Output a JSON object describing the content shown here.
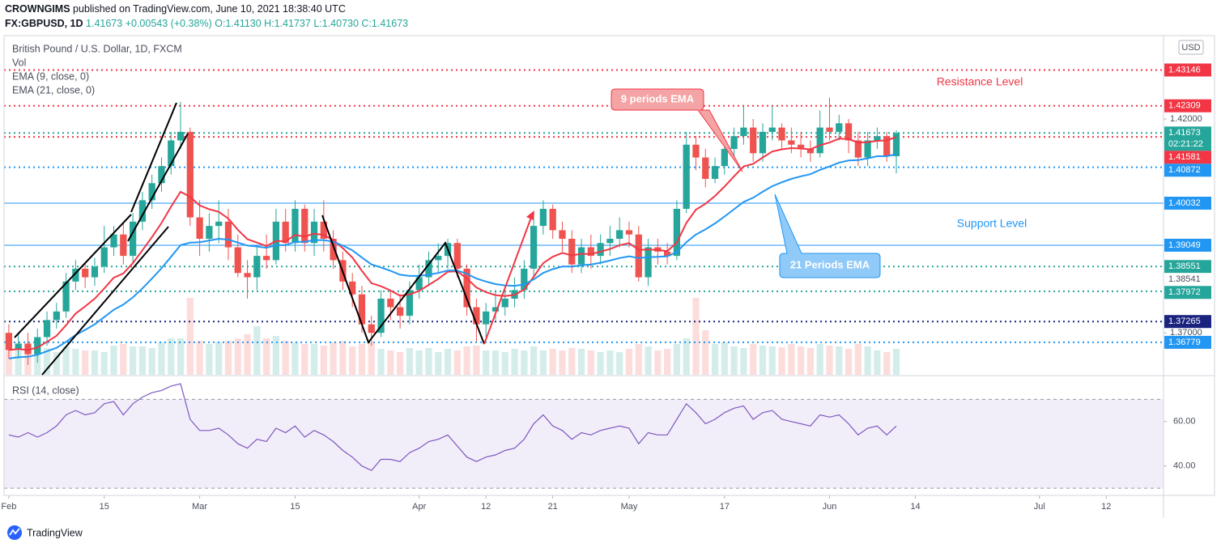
{
  "header": {
    "publisher": "CROWNGIMS",
    "published": "published on TradingView.com, June 10, 2021 18:38:40 UTC",
    "symbol": "FX:GBPUSD, 1D",
    "last": "1.41673",
    "change": "+0.00543 (+0.38%)",
    "open": "O:1.41130",
    "high": "H:1.41737",
    "low": "L:1.40730",
    "close": "C:1.41673"
  },
  "footer": "TradingView",
  "chart_data": {
    "type": "candlestick",
    "title": "British Pound / U.S. Dollar, 1D, FXCM",
    "currency": "USD",
    "up_color": "#26a69a",
    "down_color": "#ef5350",
    "xlim": [
      -0.5,
      121
    ],
    "xticks": [
      {
        "value": 0,
        "label": "Feb"
      },
      {
        "value": 10,
        "label": "15"
      },
      {
        "value": 20,
        "label": "Mar"
      },
      {
        "value": 30,
        "label": "15"
      },
      {
        "value": 43,
        "label": "Apr"
      },
      {
        "value": 50,
        "label": "12"
      },
      {
        "value": 57,
        "label": "21"
      },
      {
        "value": 65,
        "label": "May"
      },
      {
        "value": 75,
        "label": "17"
      },
      {
        "value": 86,
        "label": "Jun"
      },
      {
        "value": 95,
        "label": "14"
      },
      {
        "value": 108,
        "label": "Jul"
      },
      {
        "value": 115,
        "label": "12"
      }
    ],
    "ylim": [
      1.3602,
      1.4395
    ],
    "yticks": [
      {
        "value": 1.42,
        "label": "1.42000"
      },
      {
        "value": 1.37,
        "label": "1.37000"
      }
    ],
    "open": [
      1.37,
      1.366,
      1.3675,
      1.365,
      1.369,
      1.373,
      1.375,
      1.382,
      1.385,
      1.383,
      1.3855,
      1.39,
      1.393,
      1.388,
      1.396,
      1.401,
      1.405,
      1.409,
      1.415,
      1.417,
      1.397,
      1.392,
      1.395,
      1.396,
      1.39,
      1.384,
      1.383,
      1.388,
      1.387,
      1.396,
      1.391,
      1.399,
      1.391,
      1.396,
      1.392,
      1.387,
      1.382,
      1.379,
      1.372,
      1.37,
      1.378,
      1.376,
      1.374,
      1.38,
      1.383,
      1.387,
      1.388,
      1.391,
      1.385,
      1.376,
      1.372,
      1.375,
      1.376,
      1.378,
      1.38,
      1.385,
      1.395,
      1.399,
      1.394,
      1.392,
      1.386,
      1.39,
      1.388,
      1.391,
      1.392,
      1.394,
      1.393,
      1.383,
      1.39,
      1.389,
      1.388,
      1.399,
      1.414,
      1.411,
      1.406,
      1.409,
      1.413,
      1.416,
      1.418,
      1.412,
      1.417,
      1.418,
      1.415,
      1.414,
      1.413,
      1.412,
      1.418,
      1.417,
      1.419,
      1.415,
      1.411,
      1.415,
      1.416,
      1.4113
    ],
    "high": [
      1.372,
      1.37,
      1.37,
      1.371,
      1.375,
      1.377,
      1.384,
      1.387,
      1.3865,
      1.3875,
      1.395,
      1.395,
      1.3955,
      1.398,
      1.403,
      1.407,
      1.411,
      1.417,
      1.424,
      1.418,
      1.401,
      1.398,
      1.401,
      1.399,
      1.393,
      1.387,
      1.39,
      1.393,
      1.399,
      1.399,
      1.401,
      1.4,
      1.399,
      1.401,
      1.394,
      1.389,
      1.384,
      1.381,
      1.374,
      1.38,
      1.38,
      1.379,
      1.382,
      1.386,
      1.389,
      1.391,
      1.392,
      1.392,
      1.386,
      1.378,
      1.377,
      1.38,
      1.38,
      1.383,
      1.387,
      1.398,
      1.401,
      1.4,
      1.396,
      1.394,
      1.392,
      1.393,
      1.393,
      1.395,
      1.397,
      1.396,
      1.395,
      1.392,
      1.392,
      1.391,
      1.401,
      1.417,
      1.416,
      1.413,
      1.411,
      1.415,
      1.418,
      1.423,
      1.42,
      1.419,
      1.423,
      1.419,
      1.418,
      1.417,
      1.415,
      1.422,
      1.425,
      1.421,
      1.42,
      1.417,
      1.417,
      1.418,
      1.417,
      1.41737
    ],
    "low": [
      1.364,
      1.364,
      1.3625,
      1.363,
      1.367,
      1.371,
      1.3735,
      1.38,
      1.3805,
      1.381,
      1.384,
      1.388,
      1.386,
      1.386,
      1.394,
      1.399,
      1.403,
      1.407,
      1.413,
      1.395,
      1.388,
      1.389,
      1.391,
      1.387,
      1.383,
      1.378,
      1.38,
      1.385,
      1.386,
      1.389,
      1.389,
      1.389,
      1.388,
      1.389,
      1.385,
      1.38,
      1.376,
      1.37,
      1.367,
      1.369,
      1.373,
      1.371,
      1.372,
      1.378,
      1.381,
      1.384,
      1.385,
      1.383,
      1.374,
      1.368,
      1.369,
      1.373,
      1.374,
      1.376,
      1.378,
      1.383,
      1.393,
      1.392,
      1.389,
      1.384,
      1.384,
      1.385,
      1.386,
      1.388,
      1.39,
      1.39,
      1.382,
      1.381,
      1.386,
      1.386,
      1.387,
      1.398,
      1.408,
      1.404,
      1.405,
      1.407,
      1.411,
      1.414,
      1.41,
      1.41,
      1.415,
      1.413,
      1.412,
      1.411,
      1.41,
      1.411,
      1.415,
      1.415,
      1.412,
      1.409,
      1.409,
      1.413,
      1.41,
      1.4073
    ],
    "close": [
      1.366,
      1.3675,
      1.365,
      1.369,
      1.373,
      1.375,
      1.382,
      1.385,
      1.383,
      1.3855,
      1.39,
      1.393,
      1.388,
      1.396,
      1.401,
      1.405,
      1.409,
      1.415,
      1.417,
      1.397,
      1.392,
      1.395,
      1.396,
      1.39,
      1.384,
      1.383,
      1.388,
      1.387,
      1.396,
      1.391,
      1.399,
      1.391,
      1.396,
      1.392,
      1.387,
      1.382,
      1.379,
      1.372,
      1.37,
      1.378,
      1.376,
      1.374,
      1.38,
      1.383,
      1.387,
      1.388,
      1.391,
      1.385,
      1.376,
      1.372,
      1.375,
      1.376,
      1.378,
      1.38,
      1.385,
      1.395,
      1.399,
      1.394,
      1.392,
      1.386,
      1.39,
      1.388,
      1.391,
      1.392,
      1.394,
      1.393,
      1.383,
      1.39,
      1.389,
      1.388,
      1.399,
      1.414,
      1.411,
      1.406,
      1.409,
      1.413,
      1.416,
      1.418,
      1.412,
      1.417,
      1.418,
      1.415,
      1.414,
      1.413,
      1.412,
      1.418,
      1.417,
      1.419,
      1.415,
      1.411,
      1.415,
      1.416,
      1.4113,
      1.41673
    ],
    "volume": {
      "name": "Vol",
      "vlim": [
        0,
        100
      ],
      "values": [
        35,
        30,
        32,
        30,
        33,
        28,
        35,
        32,
        30,
        30,
        28,
        36,
        38,
        35,
        35,
        33,
        40,
        45,
        45,
        95,
        42,
        38,
        40,
        42,
        45,
        50,
        60,
        45,
        48,
        42,
        40,
        38,
        38,
        36,
        40,
        42,
        35,
        38,
        40,
        32,
        30,
        28,
        33,
        30,
        33,
        28,
        32,
        30,
        35,
        36,
        30,
        30,
        28,
        32,
        30,
        35,
        30,
        32,
        30,
        33,
        32,
        30,
        28,
        30,
        28,
        32,
        38,
        35,
        30,
        32,
        38,
        45,
        95,
        55,
        38,
        40,
        35,
        33,
        38,
        36,
        35,
        34,
        38,
        35,
        33,
        38,
        36,
        35,
        32,
        38,
        35,
        30,
        28,
        32
      ]
    },
    "series": [
      {
        "name": "EMA (9, close, 0)",
        "color": "#f23645",
        "values": [
          1.366,
          1.3662,
          1.366,
          1.3666,
          1.3679,
          1.3693,
          1.3718,
          1.3745,
          1.3762,
          1.378,
          1.3804,
          1.3829,
          1.3839,
          1.3863,
          1.3893,
          1.3924,
          1.3957,
          1.3995,
          1.403,
          1.4018,
          1.3998,
          1.3989,
          1.3983,
          1.3967,
          1.3941,
          1.3919,
          1.3911,
          1.3903,
          1.3915,
          1.3914,
          1.3929,
          1.3925,
          1.3932,
          1.3929,
          1.3917,
          1.3898,
          1.3876,
          1.3845,
          1.3816,
          1.3809,
          1.3799,
          1.3787,
          1.379,
          1.3798,
          1.3812,
          1.3826,
          1.3843,
          1.3844,
          1.3827,
          1.3806,
          1.3795,
          1.3788,
          1.3786,
          1.3789,
          1.3801,
          1.3831,
          1.3863,
          1.3878,
          1.3887,
          1.3881,
          1.3885,
          1.3884,
          1.389,
          1.3896,
          1.3905,
          1.391,
          1.3894,
          1.3895,
          1.3894,
          1.3891,
          1.3911,
          1.3957,
          1.3988,
          1.4002,
          1.402,
          1.4042,
          1.4066,
          1.4089,
          1.4095,
          1.411,
          1.4124,
          1.4129,
          1.4132,
          1.4131,
          1.4129,
          1.4139,
          1.4145,
          1.4154,
          1.4153,
          1.4145,
          1.4146,
          1.4149,
          1.415,
          1.4158
        ]
      },
      {
        "name": "EMA (21, close, 0)",
        "color": "#2196f3",
        "values": [
          1.364,
          1.3643,
          1.3644,
          1.3649,
          1.3657,
          1.3665,
          1.3679,
          1.3695,
          1.3707,
          1.372,
          1.3737,
          1.3754,
          1.3766,
          1.3783,
          1.3804,
          1.3827,
          1.3851,
          1.3878,
          1.3905,
          1.3911,
          1.3912,
          1.3916,
          1.392,
          1.3918,
          1.3911,
          1.3904,
          1.3902,
          1.3899,
          1.3905,
          1.3905,
          1.3913,
          1.3913,
          1.3917,
          1.3917,
          1.3913,
          1.3904,
          1.3893,
          1.3876,
          1.386,
          1.3853,
          1.3845,
          1.3836,
          1.3833,
          1.3833,
          1.3836,
          1.384,
          1.3846,
          1.3846,
          1.3838,
          1.3827,
          1.382,
          1.3814,
          1.3811,
          1.381,
          1.3813,
          1.3825,
          1.384,
          1.3849,
          1.3855,
          1.3855,
          1.3858,
          1.386,
          1.3864,
          1.3869,
          1.3875,
          1.3879,
          1.3875,
          1.3877,
          1.3878,
          1.3879,
          1.3889,
          1.3912,
          1.393,
          1.3942,
          1.3956,
          1.3972,
          1.3989,
          1.4006,
          1.4016,
          1.403,
          1.4043,
          1.4052,
          1.406,
          1.4066,
          1.4071,
          1.4081,
          1.4089,
          1.4098,
          1.4103,
          1.4104,
          1.4108,
          1.4113,
          1.4113,
          1.4118
        ]
      }
    ],
    "price_lines": [
      {
        "value": 1.41673,
        "color": "#26a69a",
        "dash": "dotted",
        "countdown": "02:21:22"
      },
      {
        "value": 1.43146,
        "color": "#f23645",
        "dash": "dotted"
      },
      {
        "value": 1.42309,
        "color": "#f23645",
        "dash": "dotted"
      },
      {
        "value": 1.41581,
        "color": "#f23645",
        "dash": "dotted"
      },
      {
        "value": 1.40872,
        "color": "#2196f3",
        "dash": "dotted"
      },
      {
        "value": 1.40032,
        "color": "#2196f3",
        "dash": "solid"
      },
      {
        "value": 1.39049,
        "color": "#2196f3",
        "dash": "solid"
      },
      {
        "value": 1.38551,
        "color": "#26a69a",
        "dash": "dotted"
      },
      {
        "value": 1.38541,
        "color": "#4a4f5c",
        "dash": "none"
      },
      {
        "value": 1.37972,
        "color": "#26a69a",
        "dash": "dotted"
      },
      {
        "value": 1.37265,
        "color": "#1a237e",
        "dash": "dotted"
      },
      {
        "value": 1.36779,
        "color": "#2196f3",
        "dash": "dotted"
      }
    ],
    "annotations": [
      "Resistance Level",
      "Support Level",
      "9 periods EMA",
      "21 Periods EMA"
    ]
  },
  "rsi": {
    "type": "line",
    "name": "RSI (14, close)",
    "color": "#7e57c2",
    "ylim": [
      27.5,
      78.5
    ],
    "yticks": [
      {
        "value": 60,
        "label": "60.00"
      },
      {
        "value": 40,
        "label": "40.00"
      }
    ],
    "bands": [
      70,
      30
    ],
    "values": [
      54,
      53,
      55,
      53,
      55,
      58,
      63,
      65,
      63,
      64,
      68,
      69,
      63,
      68,
      71,
      73,
      74,
      76,
      77,
      61,
      56,
      56,
      57,
      54,
      50,
      48,
      52,
      51,
      57,
      55,
      58,
      53,
      56,
      54,
      51,
      47,
      44,
      40,
      38,
      43,
      43,
      42,
      46,
      48,
      51,
      52,
      54,
      49,
      44,
      42,
      44,
      45,
      47,
      48,
      52,
      59,
      63,
      58,
      56,
      52,
      55,
      54,
      56,
      57,
      58,
      57,
      50,
      55,
      54,
      54,
      61,
      68,
      64,
      59,
      61,
      64,
      66,
      67,
      61,
      64,
      65,
      61,
      60,
      59,
      58,
      63,
      62,
      63,
      59,
      54,
      57,
      58,
      54,
      58
    ]
  }
}
